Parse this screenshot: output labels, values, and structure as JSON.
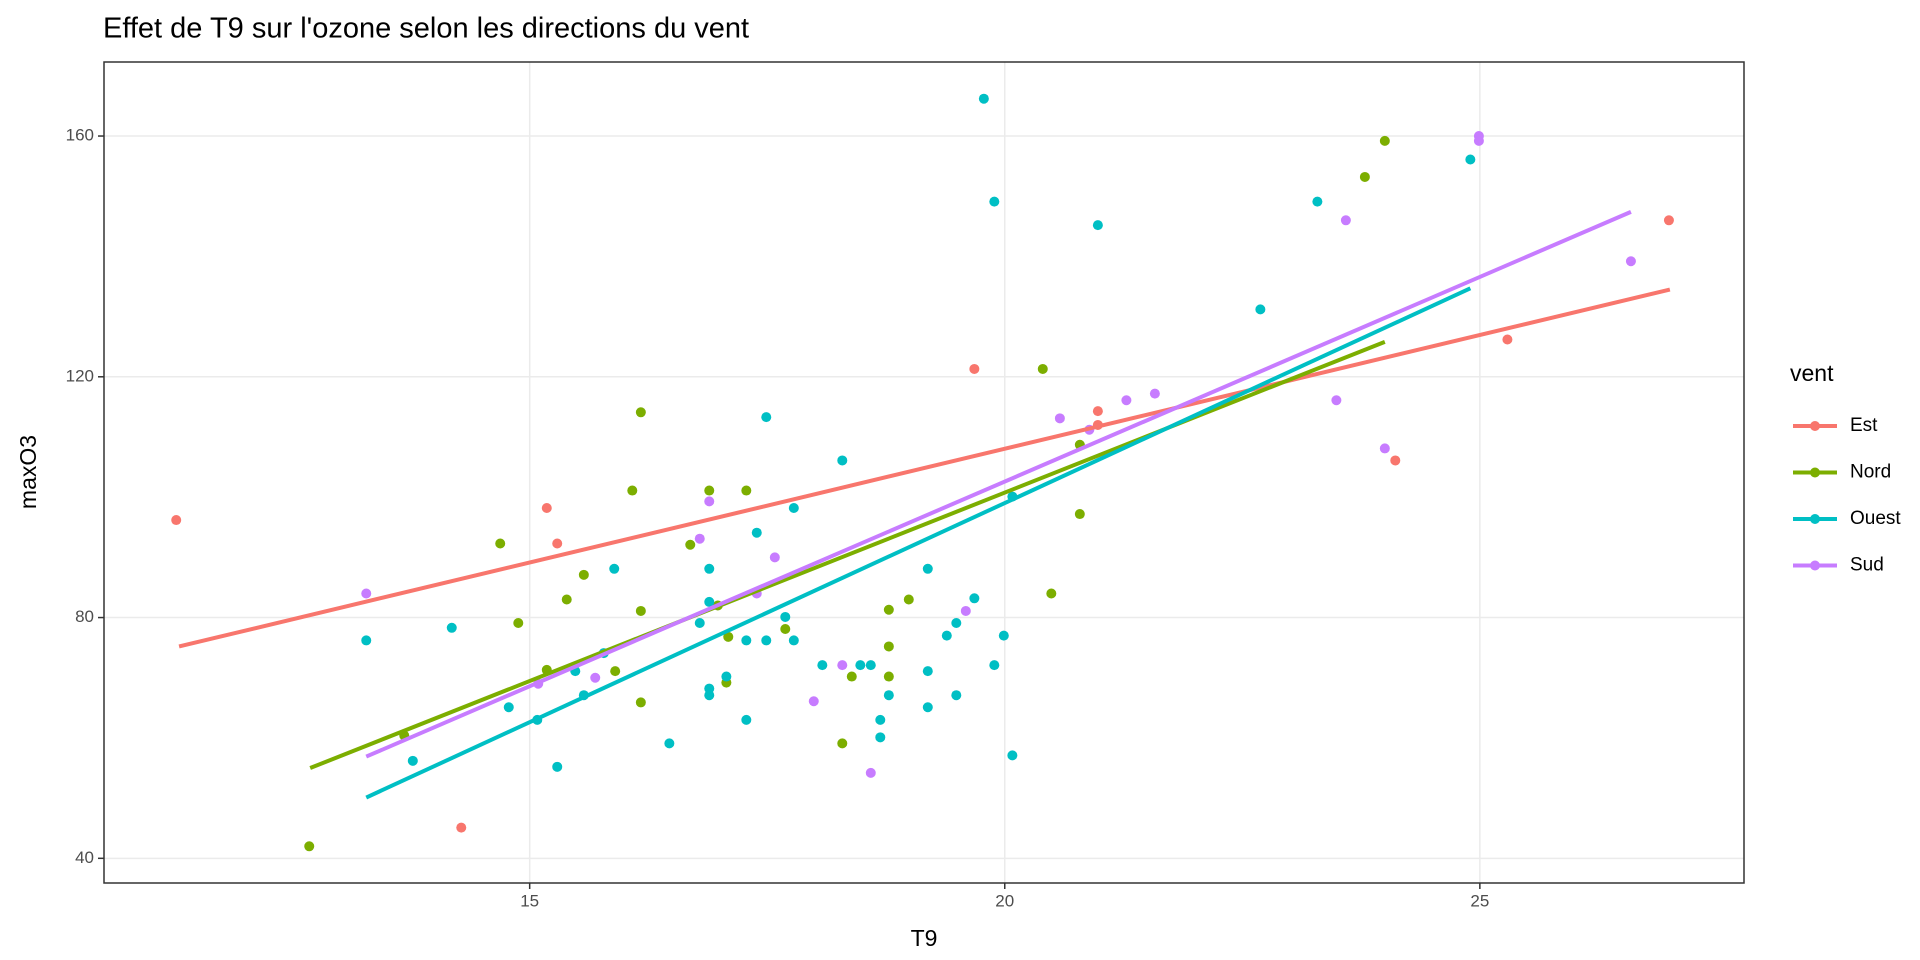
{
  "chart_data": {
    "type": "scatter",
    "title": "Effet de T9 sur l'ozone selon les directions du vent",
    "x_label": "T9",
    "y_label": "maxO3",
    "legend_title": "vent",
    "legend": "right",
    "grid": true,
    "xlim": [
      10.52,
      27.78
    ],
    "xticks": [
      15,
      20,
      25
    ],
    "ylim": [
      35.9,
      172.3
    ],
    "yticks": [
      40,
      80,
      120,
      160
    ],
    "series": [
      {
        "name": "Est",
        "color": "#F8766D",
        "x": [
          11.28,
          15.18,
          15.29,
          14.28,
          19.68,
          20.98,
          20.98,
          24.11,
          25.29,
          26.99
        ],
        "y": [
          96.2,
          98.2,
          92.3,
          45.1,
          121.3,
          114.3,
          112.0,
          106.1,
          126.2,
          146.0
        ],
        "fit": {
          "x": [
            11.31,
            27.0
          ],
          "y": [
            75.2,
            134.5
          ]
        }
      },
      {
        "name": "Nord",
        "color": "#7CAE00",
        "x": [
          12.68,
          13.68,
          14.69,
          14.88,
          15.18,
          15.39,
          15.57,
          15.9,
          16.08,
          16.17,
          16.17,
          16.17,
          16.69,
          16.89,
          16.98,
          17.07,
          17.09,
          17.28,
          17.69,
          18.29,
          18.39,
          18.78,
          18.78,
          18.78,
          18.99,
          20.4,
          20.49,
          20.79,
          20.79,
          23.79,
          24.0
        ],
        "y": [
          42.0,
          60.4,
          92.3,
          79.1,
          71.3,
          83.0,
          87.1,
          71.1,
          101.1,
          114.1,
          81.1,
          65.9,
          92.1,
          101.1,
          82.0,
          69.2,
          76.8,
          101.1,
          78.1,
          59.1,
          70.2,
          81.3,
          70.2,
          75.2,
          83.0,
          121.3,
          84.0,
          97.2,
          108.7,
          153.2,
          159.2
        ],
        "fit": {
          "x": [
            12.69,
            24.0
          ],
          "y": [
            55.0,
            125.8
          ]
        }
      },
      {
        "name": "Ouest",
        "color": "#00BFC4",
        "x": [
          13.28,
          13.77,
          14.18,
          14.78,
          15.08,
          15.29,
          15.48,
          15.57,
          15.78,
          15.89,
          16.47,
          16.79,
          16.89,
          16.89,
          16.89,
          16.89,
          17.07,
          17.28,
          17.28,
          17.39,
          17.49,
          17.49,
          17.69,
          17.78,
          17.78,
          18.08,
          18.29,
          18.48,
          18.59,
          18.69,
          18.69,
          18.78,
          19.19,
          19.19,
          19.19,
          19.39,
          19.49,
          19.49,
          19.68,
          19.78,
          19.89,
          19.89,
          19.99,
          20.08,
          20.08,
          20.98,
          22.69,
          23.29,
          24.9
        ],
        "y": [
          76.2,
          56.2,
          78.3,
          65.1,
          63.0,
          55.2,
          71.1,
          67.1,
          74.1,
          88.1,
          59.1,
          79.1,
          88.1,
          82.6,
          68.2,
          67.1,
          70.2,
          76.2,
          63.0,
          94.1,
          113.3,
          76.2,
          80.1,
          98.2,
          76.2,
          72.1,
          106.1,
          72.1,
          72.1,
          63.0,
          60.1,
          67.1,
          88.1,
          71.1,
          65.1,
          77.0,
          79.1,
          67.1,
          83.2,
          166.2,
          149.1,
          72.1,
          77.0,
          100.1,
          57.1,
          145.2,
          131.2,
          149.1,
          156.1
        ],
        "fit": {
          "x": [
            13.28,
            24.9
          ],
          "y": [
            50.1,
            134.7
          ]
        }
      },
      {
        "name": "Sud",
        "color": "#C77CFF",
        "x": [
          13.28,
          15.09,
          15.69,
          16.89,
          16.79,
          17.39,
          17.58,
          17.99,
          18.29,
          18.59,
          19.59,
          20.58,
          20.89,
          21.28,
          21.58,
          23.49,
          23.59,
          24.0,
          24.99,
          24.99,
          26.59
        ],
        "y": [
          84.0,
          69.0,
          70.0,
          99.3,
          93.1,
          84.0,
          90.0,
          66.1,
          72.1,
          54.2,
          81.1,
          113.1,
          111.2,
          116.1,
          117.2,
          116.1,
          146.0,
          108.1,
          160.0,
          159.2,
          139.2
        ],
        "fit": {
          "x": [
            13.28,
            26.59
          ],
          "y": [
            56.9,
            147.4
          ]
        }
      }
    ]
  }
}
